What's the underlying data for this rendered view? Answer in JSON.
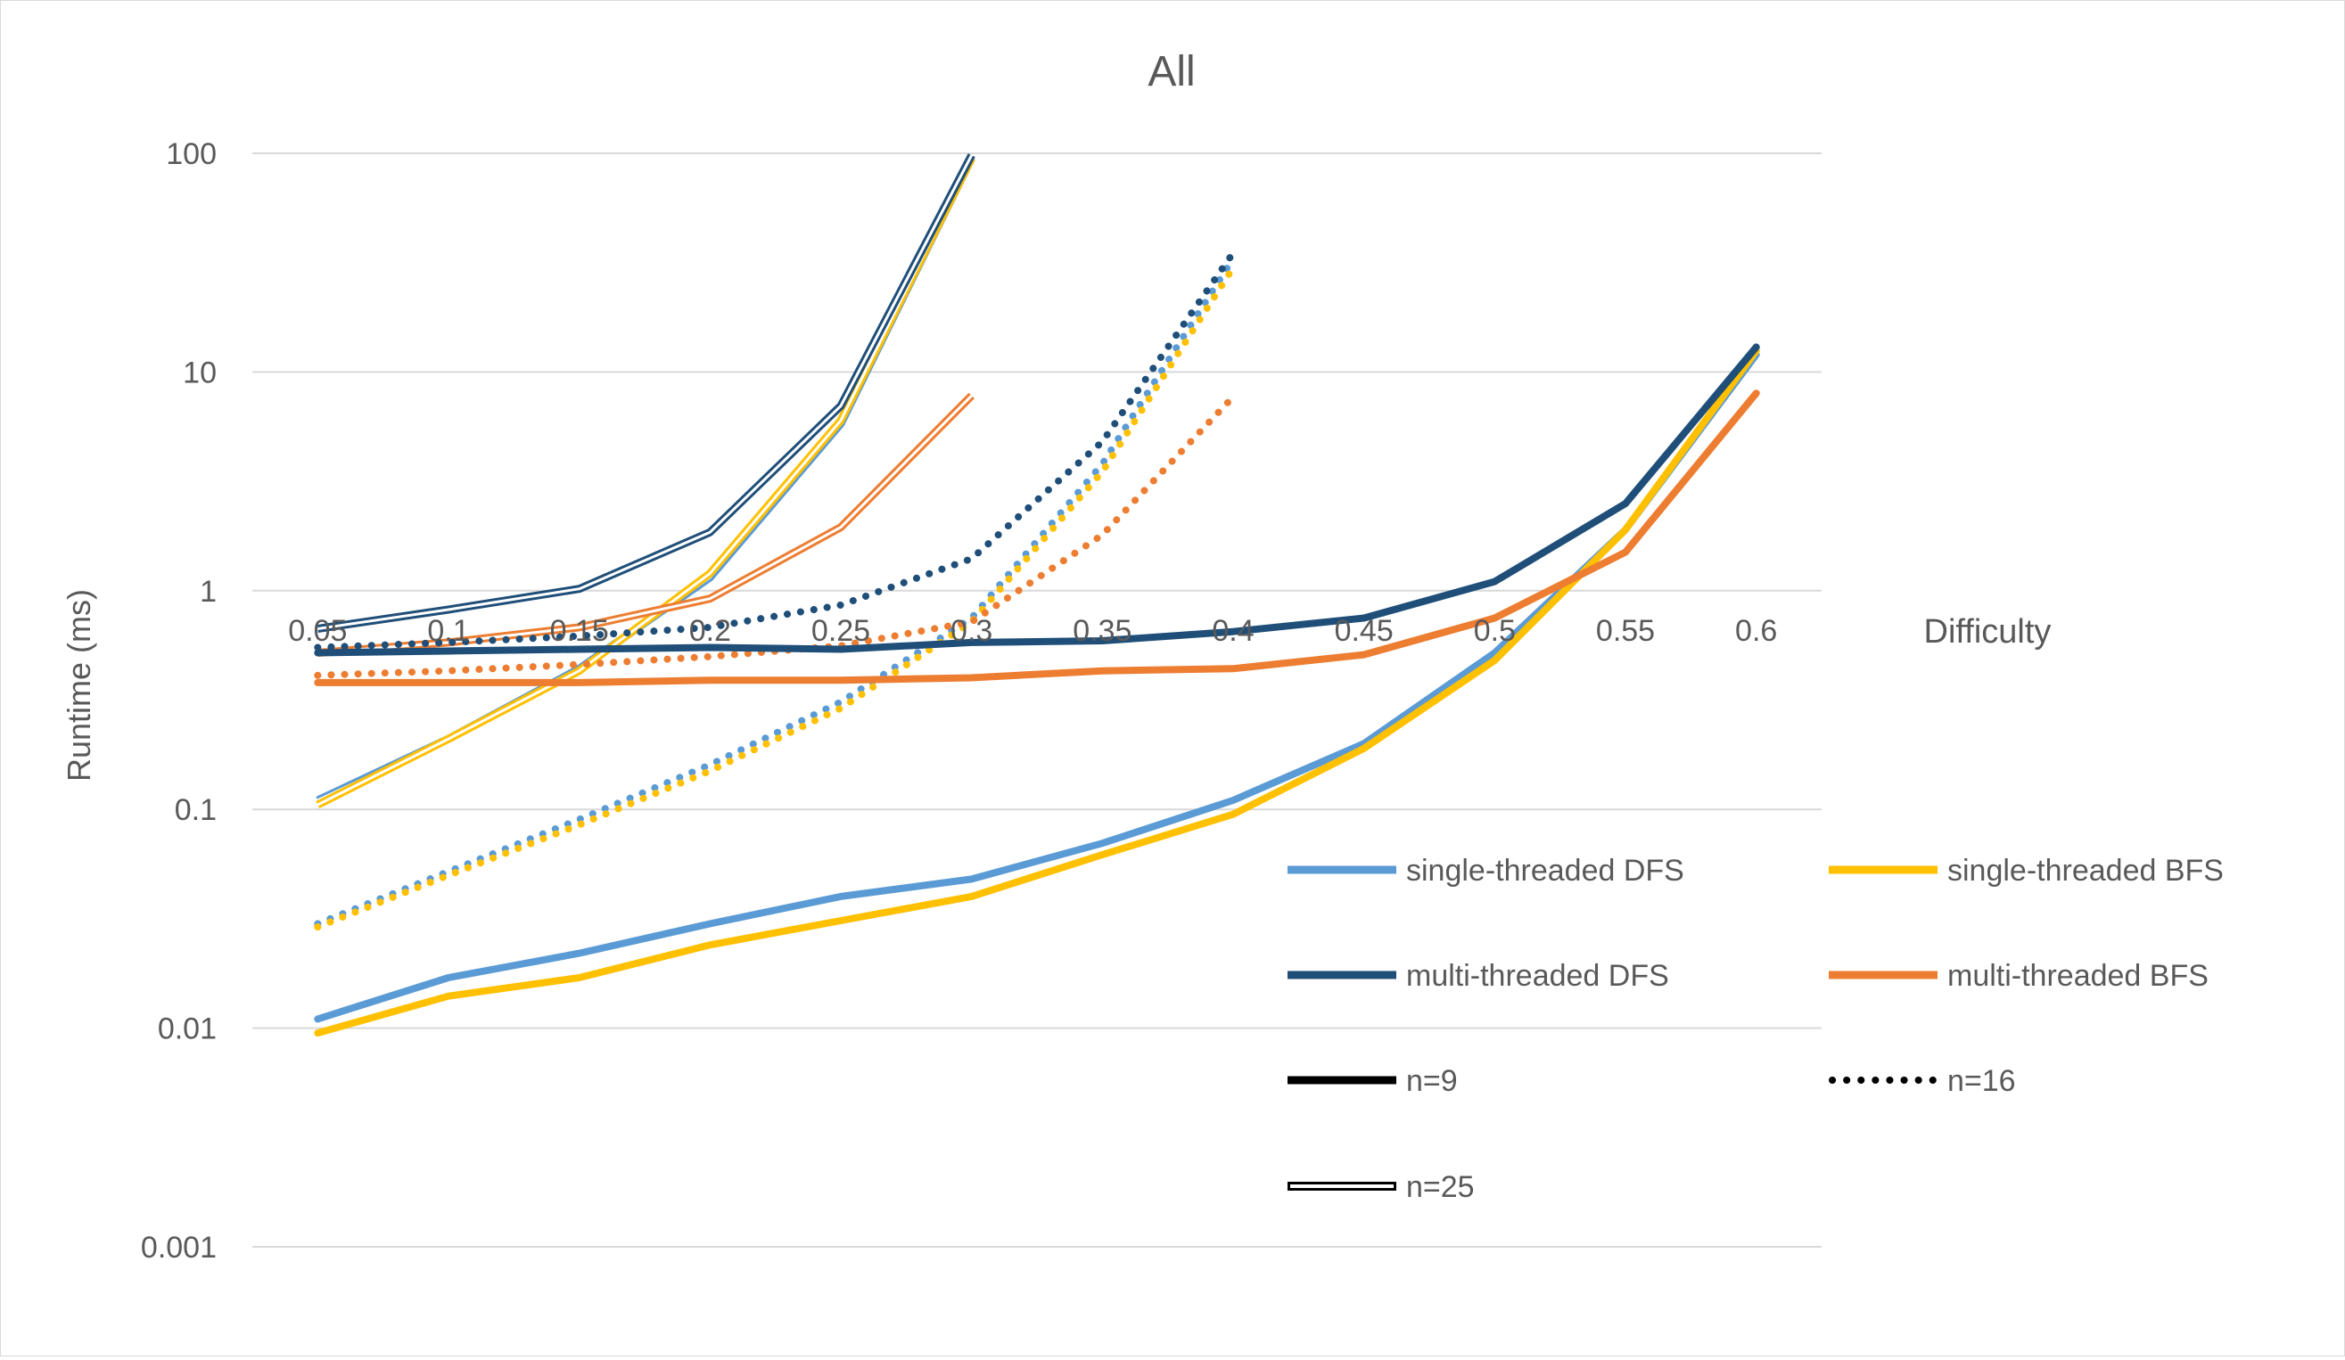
{
  "chart_data": {
    "type": "line",
    "title": "All",
    "xlabel": "Difficulty",
    "ylabel": "Runtime (ms)",
    "y_scale": "log",
    "ylim": [
      0.001,
      100
    ],
    "y_ticks": [
      "100",
      "10",
      "1",
      "0.1",
      "0.01",
      "0.001"
    ],
    "y_tick_values": [
      100,
      10,
      1,
      0.1,
      0.01,
      0.001
    ],
    "x_crosses_y_at": 1,
    "categories": [
      "0.05",
      "0.1",
      "0.15",
      "0.2",
      "0.25",
      "0.3",
      "0.35",
      "0.4",
      "0.45",
      "0.5",
      "0.55",
      "0.6"
    ],
    "grid": "horizontal",
    "legend_position": "bottom-right",
    "colors": {
      "single-threaded DFS": "#5b9bd5",
      "single-threaded BFS": "#ffc000",
      "multi-threaded DFS": "#1f4e79",
      "multi-threaded BFS": "#ed7d31"
    },
    "legend": [
      {
        "label": "single-threaded DFS",
        "kind": "color",
        "color": "#5b9bd5"
      },
      {
        "label": "single-threaded BFS",
        "kind": "color",
        "color": "#ffc000"
      },
      {
        "label": "multi-threaded DFS",
        "kind": "color",
        "color": "#1f4e79"
      },
      {
        "label": "multi-threaded BFS",
        "kind": "color",
        "color": "#ed7d31"
      },
      {
        "label": "n=9",
        "kind": "solid",
        "color": "#000000"
      },
      {
        "label": "n=16",
        "kind": "dotted",
        "color": "#000000"
      },
      {
        "label": "n=25",
        "kind": "double",
        "color": "#000000"
      }
    ],
    "series": [
      {
        "algorithm": "single-threaded DFS",
        "n": "n=9",
        "style": "solid",
        "color": "#5b9bd5",
        "values": [
          0.011,
          0.017,
          0.022,
          0.03,
          0.04,
          0.048,
          0.07,
          0.11,
          0.2,
          0.52,
          1.9,
          12
        ]
      },
      {
        "algorithm": "single-threaded BFS",
        "n": "n=9",
        "style": "solid",
        "color": "#ffc000",
        "values": [
          0.0095,
          0.014,
          0.017,
          0.024,
          0.031,
          0.04,
          0.062,
          0.095,
          0.19,
          0.48,
          1.9,
          12.5
        ]
      },
      {
        "algorithm": "multi-threaded DFS",
        "n": "n=9",
        "style": "solid",
        "color": "#1f4e79",
        "values": [
          0.52,
          0.53,
          0.54,
          0.55,
          0.54,
          0.58,
          0.59,
          0.65,
          0.75,
          1.1,
          2.5,
          13
        ]
      },
      {
        "algorithm": "multi-threaded BFS",
        "n": "n=9",
        "style": "solid",
        "color": "#ed7d31",
        "values": [
          0.38,
          0.38,
          0.38,
          0.39,
          0.39,
          0.4,
          0.43,
          0.44,
          0.51,
          0.75,
          1.5,
          8
        ]
      },
      {
        "algorithm": "single-threaded DFS",
        "n": "n=16",
        "style": "dotted",
        "color": "#5b9bd5",
        "values": [
          0.03,
          0.052,
          0.09,
          0.16,
          0.31,
          0.75,
          3.8,
          33,
          null,
          null,
          null,
          null
        ]
      },
      {
        "algorithm": "single-threaded BFS",
        "n": "n=16",
        "style": "dotted",
        "color": "#ffc000",
        "values": [
          0.029,
          0.05,
          0.085,
          0.15,
          0.29,
          0.72,
          3.5,
          30,
          null,
          null,
          null,
          null
        ]
      },
      {
        "algorithm": "multi-threaded DFS",
        "n": "n=16",
        "style": "dotted",
        "color": "#1f4e79",
        "values": [
          0.55,
          0.58,
          0.62,
          0.68,
          0.86,
          1.4,
          4.8,
          35,
          null,
          null,
          null,
          null
        ]
      },
      {
        "algorithm": "multi-threaded BFS",
        "n": "n=16",
        "style": "dotted",
        "color": "#ed7d31",
        "values": [
          0.41,
          0.43,
          0.46,
          0.5,
          0.56,
          0.72,
          1.8,
          7.7,
          null,
          null,
          null,
          null
        ]
      },
      {
        "algorithm": "single-threaded DFS",
        "n": "n=25",
        "style": "double",
        "color": "#5b9bd5",
        "values": [
          0.11,
          0.21,
          0.44,
          1.15,
          5.8,
          95,
          null,
          null,
          null,
          null,
          null,
          null
        ]
      },
      {
        "algorithm": "single-threaded BFS",
        "n": "n=25",
        "style": "double",
        "color": "#ffc000",
        "values": [
          0.105,
          0.21,
          0.43,
          1.2,
          6.0,
          95,
          null,
          null,
          null,
          null,
          null,
          null
        ]
      },
      {
        "algorithm": "multi-threaded DFS",
        "n": "n=25",
        "style": "double",
        "color": "#1f4e79",
        "values": [
          0.67,
          0.82,
          1.02,
          1.85,
          7.0,
          98,
          null,
          null,
          null,
          null,
          null,
          null
        ]
      },
      {
        "algorithm": "multi-threaded BFS",
        "n": "n=25",
        "style": "double",
        "color": "#ed7d31",
        "values": [
          0.52,
          0.58,
          0.68,
          0.92,
          1.95,
          7.8,
          null,
          null,
          null,
          null,
          null,
          null
        ]
      }
    ]
  }
}
